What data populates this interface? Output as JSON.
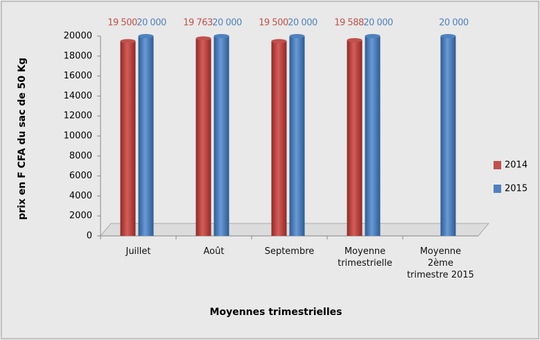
{
  "chart_data": {
    "type": "bar",
    "y_axis_label": "prix en F CFA du sac de 50 Kg",
    "x_axis_label": "Moyennes trimestrielles",
    "categories": [
      "Juillet",
      "Août",
      "Septembre",
      "Moyenne trimestrielle",
      "Moyenne 2ème trimestre 2015"
    ],
    "series": [
      {
        "name": "2014",
        "color": "#c0504d",
        "values": [
          19500,
          19763,
          19500,
          19588,
          null
        ],
        "value_labels": [
          "19 500",
          "19 763",
          "19 500",
          "19 588",
          null
        ]
      },
      {
        "name": "2015",
        "color": "#4f81bd",
        "values": [
          20000,
          20000,
          20000,
          20000,
          20000
        ],
        "value_labels": [
          "20 000",
          "20 000",
          "20 000",
          "20 000",
          "20 000"
        ]
      }
    ],
    "ylim": [
      0,
      20000
    ],
    "yticks": [
      0,
      2000,
      4000,
      6000,
      8000,
      10000,
      12000,
      14000,
      16000,
      18000,
      20000
    ],
    "grid": false,
    "legend": "right"
  }
}
